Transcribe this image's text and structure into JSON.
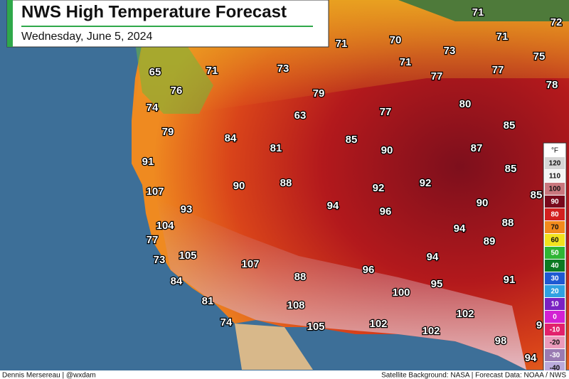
{
  "header": {
    "title": "NWS High Temperature Forecast",
    "subtitle": "Wednesday, June 5, 2024"
  },
  "labels": [
    71,
    72,
    70,
    71,
    71,
    73,
    75,
    71,
    65,
    71,
    73,
    77,
    77,
    78,
    76,
    79,
    74,
    80,
    77,
    63,
    85,
    79,
    84,
    85,
    90,
    87,
    81,
    91,
    85,
    88,
    92,
    90,
    92,
    107,
    85,
    90,
    94,
    93,
    96,
    88,
    104,
    94,
    77,
    89,
    94,
    105,
    73,
    107,
    88,
    96,
    91,
    95,
    84,
    100,
    81,
    108,
    102,
    74,
    105,
    102,
    102,
    98,
    94,
    9
  ],
  "legend": {
    "unit": "°F",
    "items": [
      {
        "label": "120",
        "color": "#d6d6d6"
      },
      {
        "label": "110",
        "color": "#f4f4f4"
      },
      {
        "label": "100",
        "color": "#c9777e"
      },
      {
        "label": "90",
        "color": "#78091c"
      },
      {
        "label": "80",
        "color": "#d3201f"
      },
      {
        "label": "70",
        "color": "#f28a1c"
      },
      {
        "label": "60",
        "color": "#f2e21e"
      },
      {
        "label": "50",
        "color": "#2fb534"
      },
      {
        "label": "40",
        "color": "#0c7a22"
      },
      {
        "label": "30",
        "color": "#1f5ad2"
      },
      {
        "label": "20",
        "color": "#2fa1e2"
      },
      {
        "label": "10",
        "color": "#7a22c2"
      },
      {
        "label": "0",
        "color": "#d321d3"
      },
      {
        "label": "-10",
        "color": "#e2216c"
      },
      {
        "label": "-20",
        "color": "#eb9bbb"
      },
      {
        "label": "-30",
        "color": "#9a7bb2"
      },
      {
        "label": "-40",
        "color": "#baaadb"
      }
    ]
  },
  "footer": {
    "left": "Dennis Mersereau | @wxdam",
    "right": "Satellite Background: NASA | Forecast Data: NOAA / NWS"
  }
}
